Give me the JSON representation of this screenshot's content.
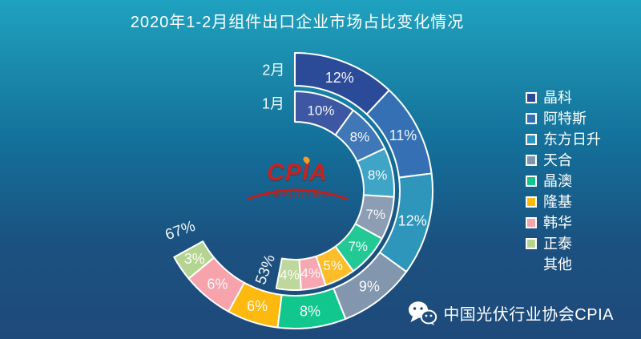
{
  "title": "2020年1-2月组件出口企业市场占比变化情况",
  "chart_data": {
    "type": "pie",
    "subtype": "two-ring donut, partial circle (gap = 其他)",
    "unit": "%",
    "start_angle": "top",
    "direction": "clockwise",
    "legend_position": "right",
    "categories": [
      "晶科",
      "阿特斯",
      "东方日升",
      "天合",
      "晶澳",
      "隆基",
      "韩华",
      "正泰"
    ],
    "other_category": "其他",
    "rings": [
      {
        "name": "2月",
        "position": "outer",
        "values": [
          12,
          11,
          12,
          9,
          8,
          6,
          6,
          3
        ],
        "total_label": "67%",
        "colors": [
          "#2b4a97",
          "#3570b5",
          "#2e95bb",
          "#8296ae",
          "#12c78e",
          "#fdb90e",
          "#f7a3ab",
          "#b5d491"
        ]
      },
      {
        "name": "1月",
        "position": "inner",
        "values": [
          10,
          8,
          8,
          7,
          7,
          5,
          4,
          4
        ],
        "total_label": "53%",
        "colors": [
          "#3d57a3",
          "#3f77b7",
          "#3fa4c5",
          "#8c9db4",
          "#22c994",
          "#fcbd28",
          "#f7a7b1",
          "#bdd79c"
        ]
      }
    ]
  },
  "legend": {
    "items": [
      {
        "label": "晶科",
        "color": "#2b4a97"
      },
      {
        "label": "阿特斯",
        "color": "#3570b5"
      },
      {
        "label": "东方日升",
        "color": "#2e95bb"
      },
      {
        "label": "天合",
        "color": "#8296ae"
      },
      {
        "label": "晶澳",
        "color": "#12c78e"
      },
      {
        "label": "隆基",
        "color": "#fdb90e"
      },
      {
        "label": "韩华",
        "color": "#f7a3ab"
      },
      {
        "label": "正泰",
        "color": "#b5d491"
      },
      {
        "label": "其他",
        "color": null
      }
    ]
  },
  "watermark": {
    "text": "CPIA",
    "subtext": "中国光伏行业协会",
    "color": "#c62420"
  },
  "footer": {
    "icon": "wechat-icon",
    "text": "中国光伏行业协会CPIA"
  },
  "background": {
    "top": "#1fa2c0",
    "bottom": "#1e4a7b"
  }
}
